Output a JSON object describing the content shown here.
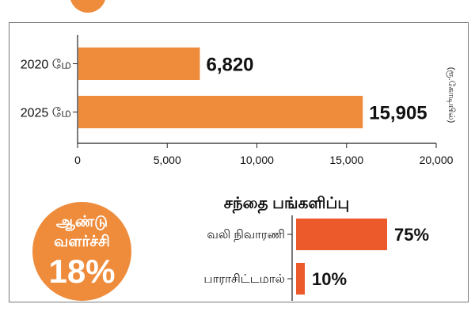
{
  "chart_data": [
    {
      "type": "bar",
      "orientation": "horizontal",
      "categories": [
        "2020 மே",
        "2025 மே"
      ],
      "values": [
        6820,
        15905
      ],
      "value_labels": [
        "6,820",
        "15,905"
      ],
      "xlim": [
        0,
        20000
      ],
      "xticks": [
        0,
        5000,
        10000,
        15000,
        20000
      ],
      "xtick_labels": [
        "0",
        "5,000",
        "10,000",
        "15,000",
        "20,000"
      ],
      "unit_label": "(ரூ.கோடியில்)",
      "color": "#ef8c3c"
    },
    {
      "type": "bar",
      "orientation": "horizontal",
      "title": "சந்தை பங்களிப்பு",
      "categories": [
        "வலி நிவாரணி",
        "பாராசிட்டமால்"
      ],
      "values": [
        75,
        10
      ],
      "value_labels": [
        "75%",
        "10%"
      ],
      "color": "#ec5a2c"
    }
  ],
  "badge": {
    "line1": "ஆண்டு",
    "line2": "வளர்ச்சி",
    "value": "18%",
    "color": "#ef8c3c"
  }
}
